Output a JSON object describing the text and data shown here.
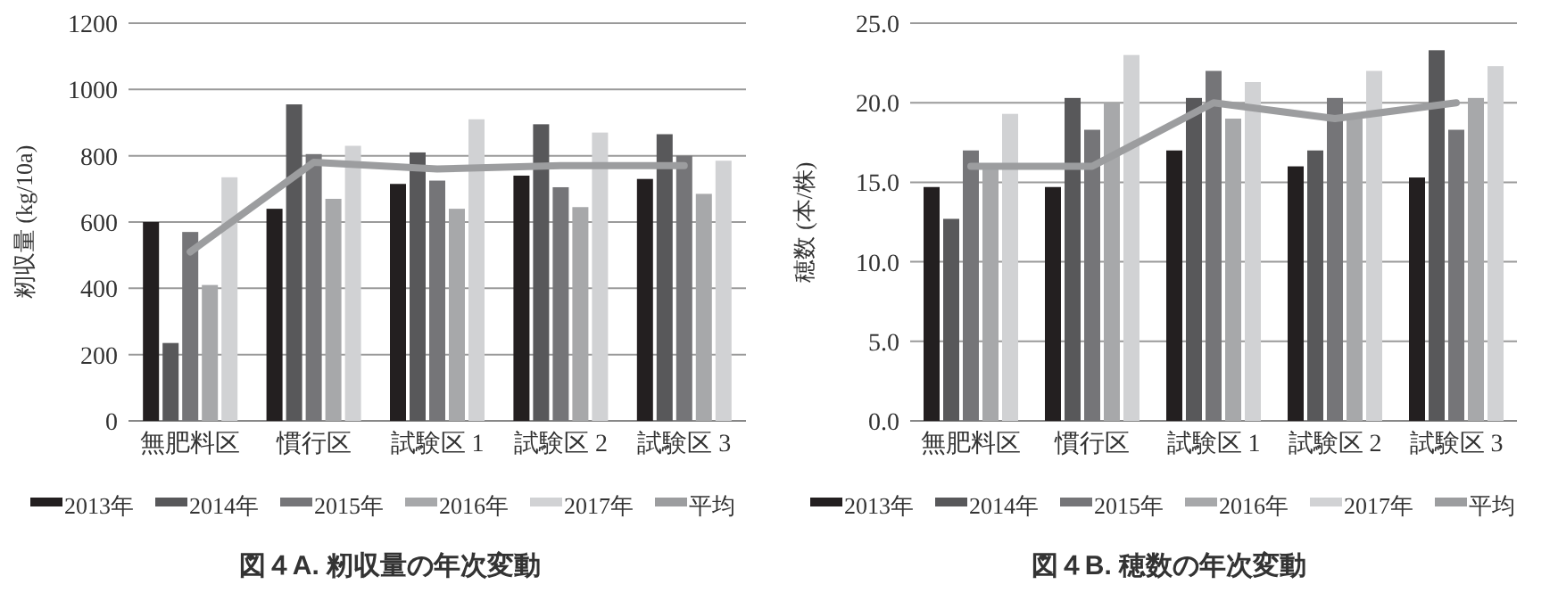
{
  "chart_data": [
    {
      "type": "bar",
      "title": "図４A.  籾収量の年次変動",
      "ylabel": "籾収量 (kg/10a)",
      "categories": [
        "無肥料区",
        "慣行区",
        "試験区 1",
        "試験区 2",
        "試験区 3"
      ],
      "ylim": [
        0,
        1200
      ],
      "yticks": [
        0,
        200,
        400,
        600,
        800,
        1000,
        1200
      ],
      "grid": "y",
      "legend": "bottom",
      "series": [
        {
          "name": "2013年",
          "color": "#231f20",
          "values": [
            600,
            640,
            715,
            740,
            730
          ]
        },
        {
          "name": "2014年",
          "color": "#58585a",
          "values": [
            235,
            955,
            810,
            895,
            865
          ]
        },
        {
          "name": "2015年",
          "color": "#757578",
          "values": [
            570,
            805,
            725,
            705,
            800
          ]
        },
        {
          "name": "2016年",
          "color": "#a7a8aa",
          "values": [
            410,
            670,
            640,
            645,
            685
          ]
        },
        {
          "name": "2017年",
          "color": "#d1d2d4",
          "values": [
            735,
            830,
            910,
            870,
            785
          ]
        },
        {
          "name": "平均",
          "type": "line",
          "color": "#9c9d9f",
          "values": [
            510,
            780,
            760,
            770,
            770
          ]
        }
      ]
    },
    {
      "type": "bar",
      "title": "図４B.  穂数の年次変動",
      "ylabel": "穂数 (本/株)",
      "categories": [
        "無肥料区",
        "慣行区",
        "試験区 1",
        "試験区 2",
        "試験区 3"
      ],
      "ylim": [
        0,
        25
      ],
      "yticks": [
        {
          "value": 0,
          "label": "0.0"
        },
        {
          "value": 5,
          "label": "5.0"
        },
        {
          "value": 10,
          "label": "10.0"
        },
        {
          "value": 15,
          "label": "15.0"
        },
        {
          "value": 20,
          "label": "20.0"
        },
        {
          "value": 25,
          "label": "25.0"
        }
      ],
      "grid": "y",
      "legend": "bottom",
      "series": [
        {
          "name": "2013年",
          "color": "#231f20",
          "values": [
            14.7,
            14.7,
            17.0,
            16.0,
            15.3
          ]
        },
        {
          "name": "2014年",
          "color": "#58585a",
          "values": [
            12.7,
            20.3,
            20.3,
            17.0,
            23.3
          ]
        },
        {
          "name": "2015年",
          "color": "#757578",
          "values": [
            17.0,
            18.3,
            22.0,
            20.3,
            18.3
          ]
        },
        {
          "name": "2016年",
          "color": "#a7a8aa",
          "values": [
            16.0,
            20.0,
            19.0,
            19.0,
            20.3
          ]
        },
        {
          "name": "2017年",
          "color": "#d1d2d4",
          "values": [
            19.3,
            23.0,
            21.3,
            22.0,
            22.3
          ]
        },
        {
          "name": "平均",
          "type": "line",
          "color": "#9c9d9f",
          "values": [
            16.0,
            16.0,
            20.0,
            19.0,
            20.0
          ]
        }
      ]
    }
  ]
}
